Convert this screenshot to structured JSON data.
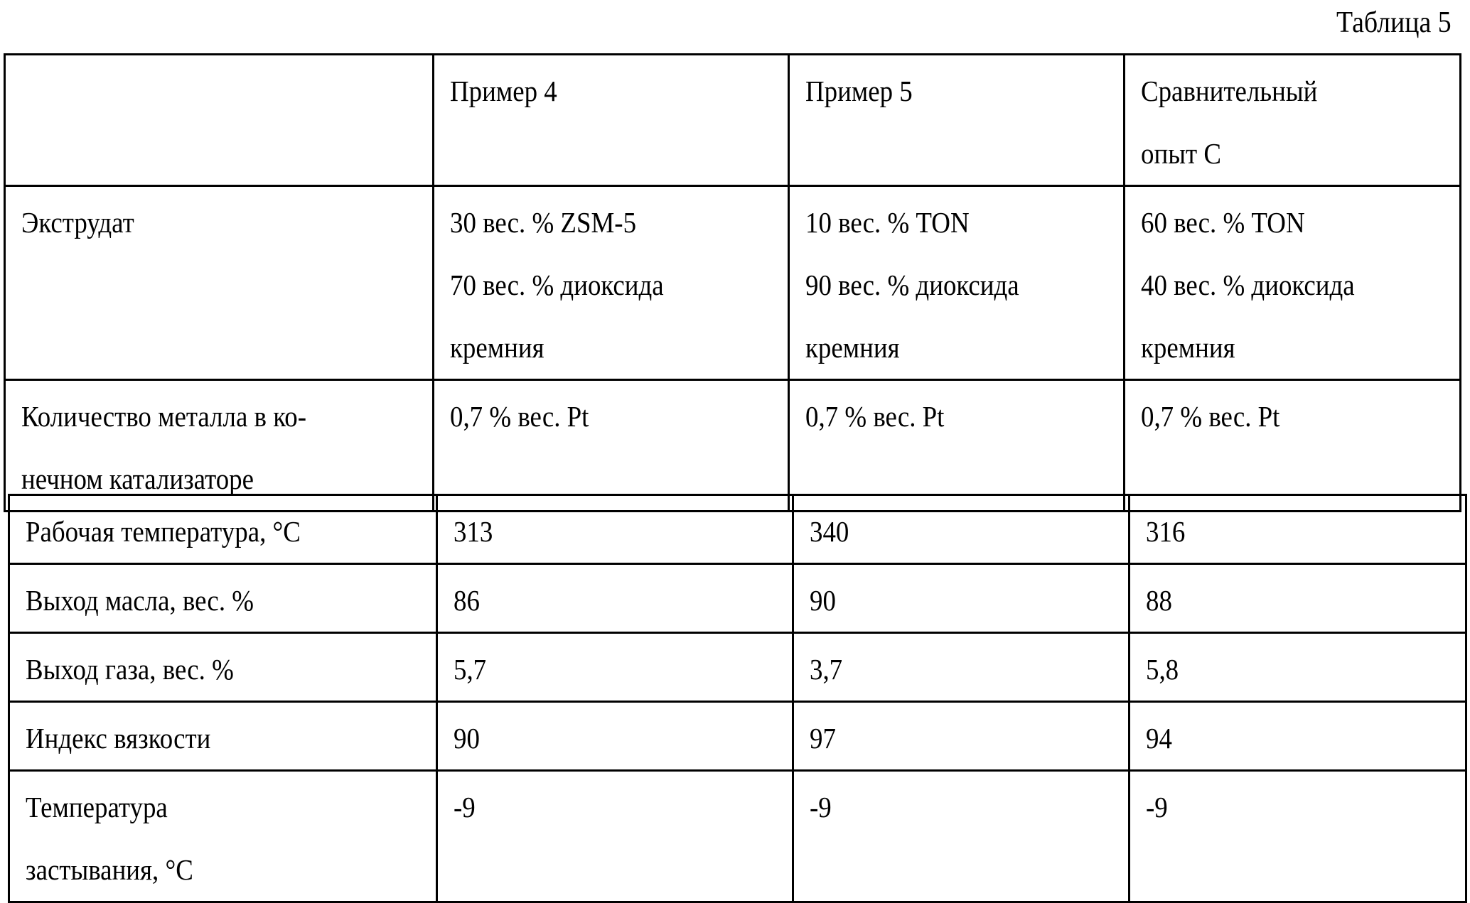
{
  "caption": "Таблица 5",
  "headers": [
    "",
    "Пример 4",
    "Пример 5",
    "Сравнительный опыт С"
  ],
  "header_lines": {
    "c3a": "Сравнительный",
    "c3b": "опыт С"
  },
  "rows": [
    {
      "label": "Экструдат",
      "cells": [
        [
          "30 вес. % ZSM-5",
          "70 вес. % диоксида",
          "кремния"
        ],
        [
          "10 вес. % TON",
          "90 вес. % диоксида",
          "кремния"
        ],
        [
          "60 вес. % TON",
          "40 вес. % диоксида",
          "кремния"
        ]
      ]
    },
    {
      "label_lines": [
        "Количество металла в ко-",
        "нечном катализаторе"
      ],
      "cells": [
        "0,7 % вес. Pt",
        "0,7 % вес. Pt",
        "0,7 % вес. Pt"
      ]
    },
    {
      "label": "Рабочая температура, °С",
      "cells": [
        "313",
        "340",
        "316"
      ]
    },
    {
      "label": "Выход масла, вес. %",
      "cells": [
        "86",
        "90",
        "88"
      ]
    },
    {
      "label": "Выход газа, вес. %",
      "cells": [
        "5,7",
        "3,7",
        "5,8"
      ]
    },
    {
      "label": "Индекс вязкости",
      "cells": [
        "90",
        "97",
        "94"
      ]
    },
    {
      "label_lines": [
        "Температура",
        "застывания, °С"
      ],
      "cells": [
        "-9",
        "-9",
        "-9"
      ]
    }
  ]
}
